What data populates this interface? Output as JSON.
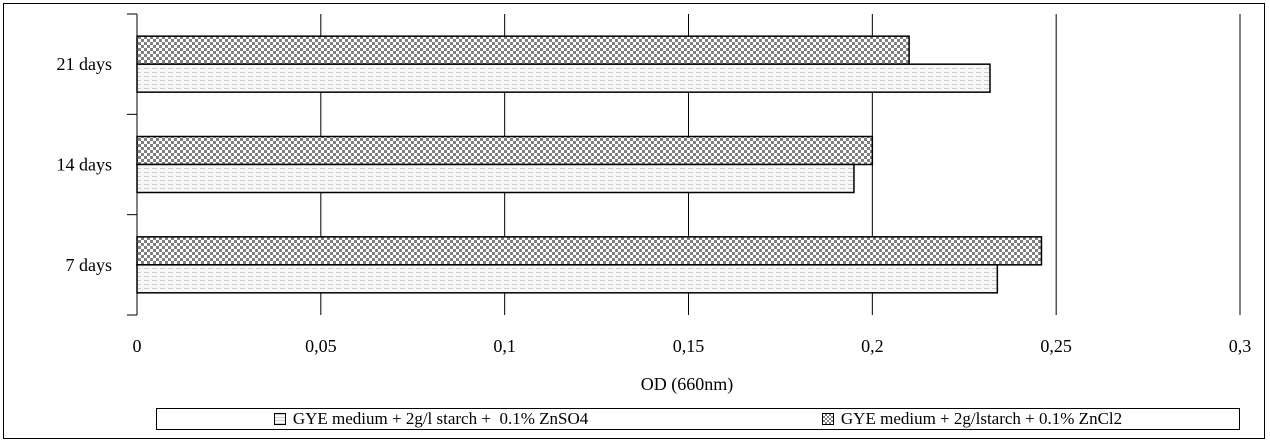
{
  "chart_data": {
    "type": "bar",
    "orientation": "horizontal",
    "categories": [
      "7 days",
      "14 days",
      "21 days"
    ],
    "series": [
      {
        "name": "GYE medium + 2g/l starch +  0.1% ZnSO4",
        "values": [
          0.234,
          0.195,
          0.232
        ],
        "pattern": "fine-stripes"
      },
      {
        "name": "GYE medium + 2g/lstarch + 0.1% ZnCl2",
        "values": [
          0.246,
          0.2,
          0.21
        ],
        "pattern": "checkerboard"
      }
    ],
    "xlabel": "OD (660nm)",
    "ylabel": "",
    "xlim": [
      0,
      0.3
    ],
    "xticks": [
      "0",
      "0,05",
      "0,1",
      "0,15",
      "0,2",
      "0,25",
      "0,3"
    ],
    "grid": "vertical",
    "legend_position": "bottom"
  }
}
